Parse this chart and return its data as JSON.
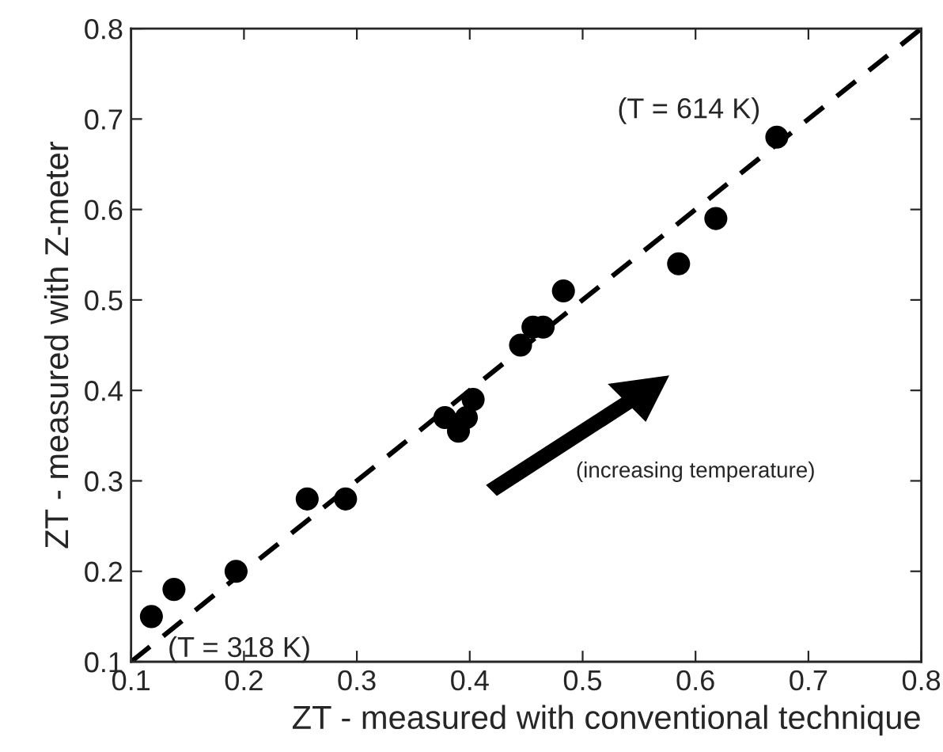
{
  "chart_data": {
    "type": "scatter",
    "xlabel": "ZT - measured with conventional technique",
    "ylabel": "ZT - measured with Z-meter",
    "xlim": [
      0.1,
      0.8
    ],
    "ylim": [
      0.1,
      0.8
    ],
    "xticks": [
      0.1,
      0.2,
      0.3,
      0.4,
      0.5,
      0.6,
      0.7,
      0.8
    ],
    "yticks": [
      0.1,
      0.2,
      0.3,
      0.4,
      0.5,
      0.6,
      0.7,
      0.8
    ],
    "grid": false,
    "legend": false,
    "marker": "circle",
    "series": [
      {
        "color": "#000000",
        "x": [
          0.118,
          0.138,
          0.193,
          0.256,
          0.29,
          0.378,
          0.39,
          0.397,
          0.403,
          0.445,
          0.456,
          0.465,
          0.483,
          0.585,
          0.618,
          0.672
        ],
        "values": [
          0.15,
          0.18,
          0.2,
          0.28,
          0.28,
          0.37,
          0.355,
          0.37,
          0.39,
          0.45,
          0.47,
          0.47,
          0.51,
          0.54,
          0.59,
          0.68
        ]
      },
      {
        "type": "line",
        "color": "#000000",
        "line_style": "dashed",
        "marker": "none",
        "x": [
          0.1,
          0.8
        ],
        "values": [
          0.1,
          0.8
        ]
      }
    ],
    "annotations": [
      {
        "text": "(T = 614 K)",
        "x": 0.672,
        "y": 0.68
      },
      {
        "text": "(T = 318 K)",
        "x": 0.118,
        "y": 0.15
      },
      "(increasing temperature)"
    ]
  }
}
